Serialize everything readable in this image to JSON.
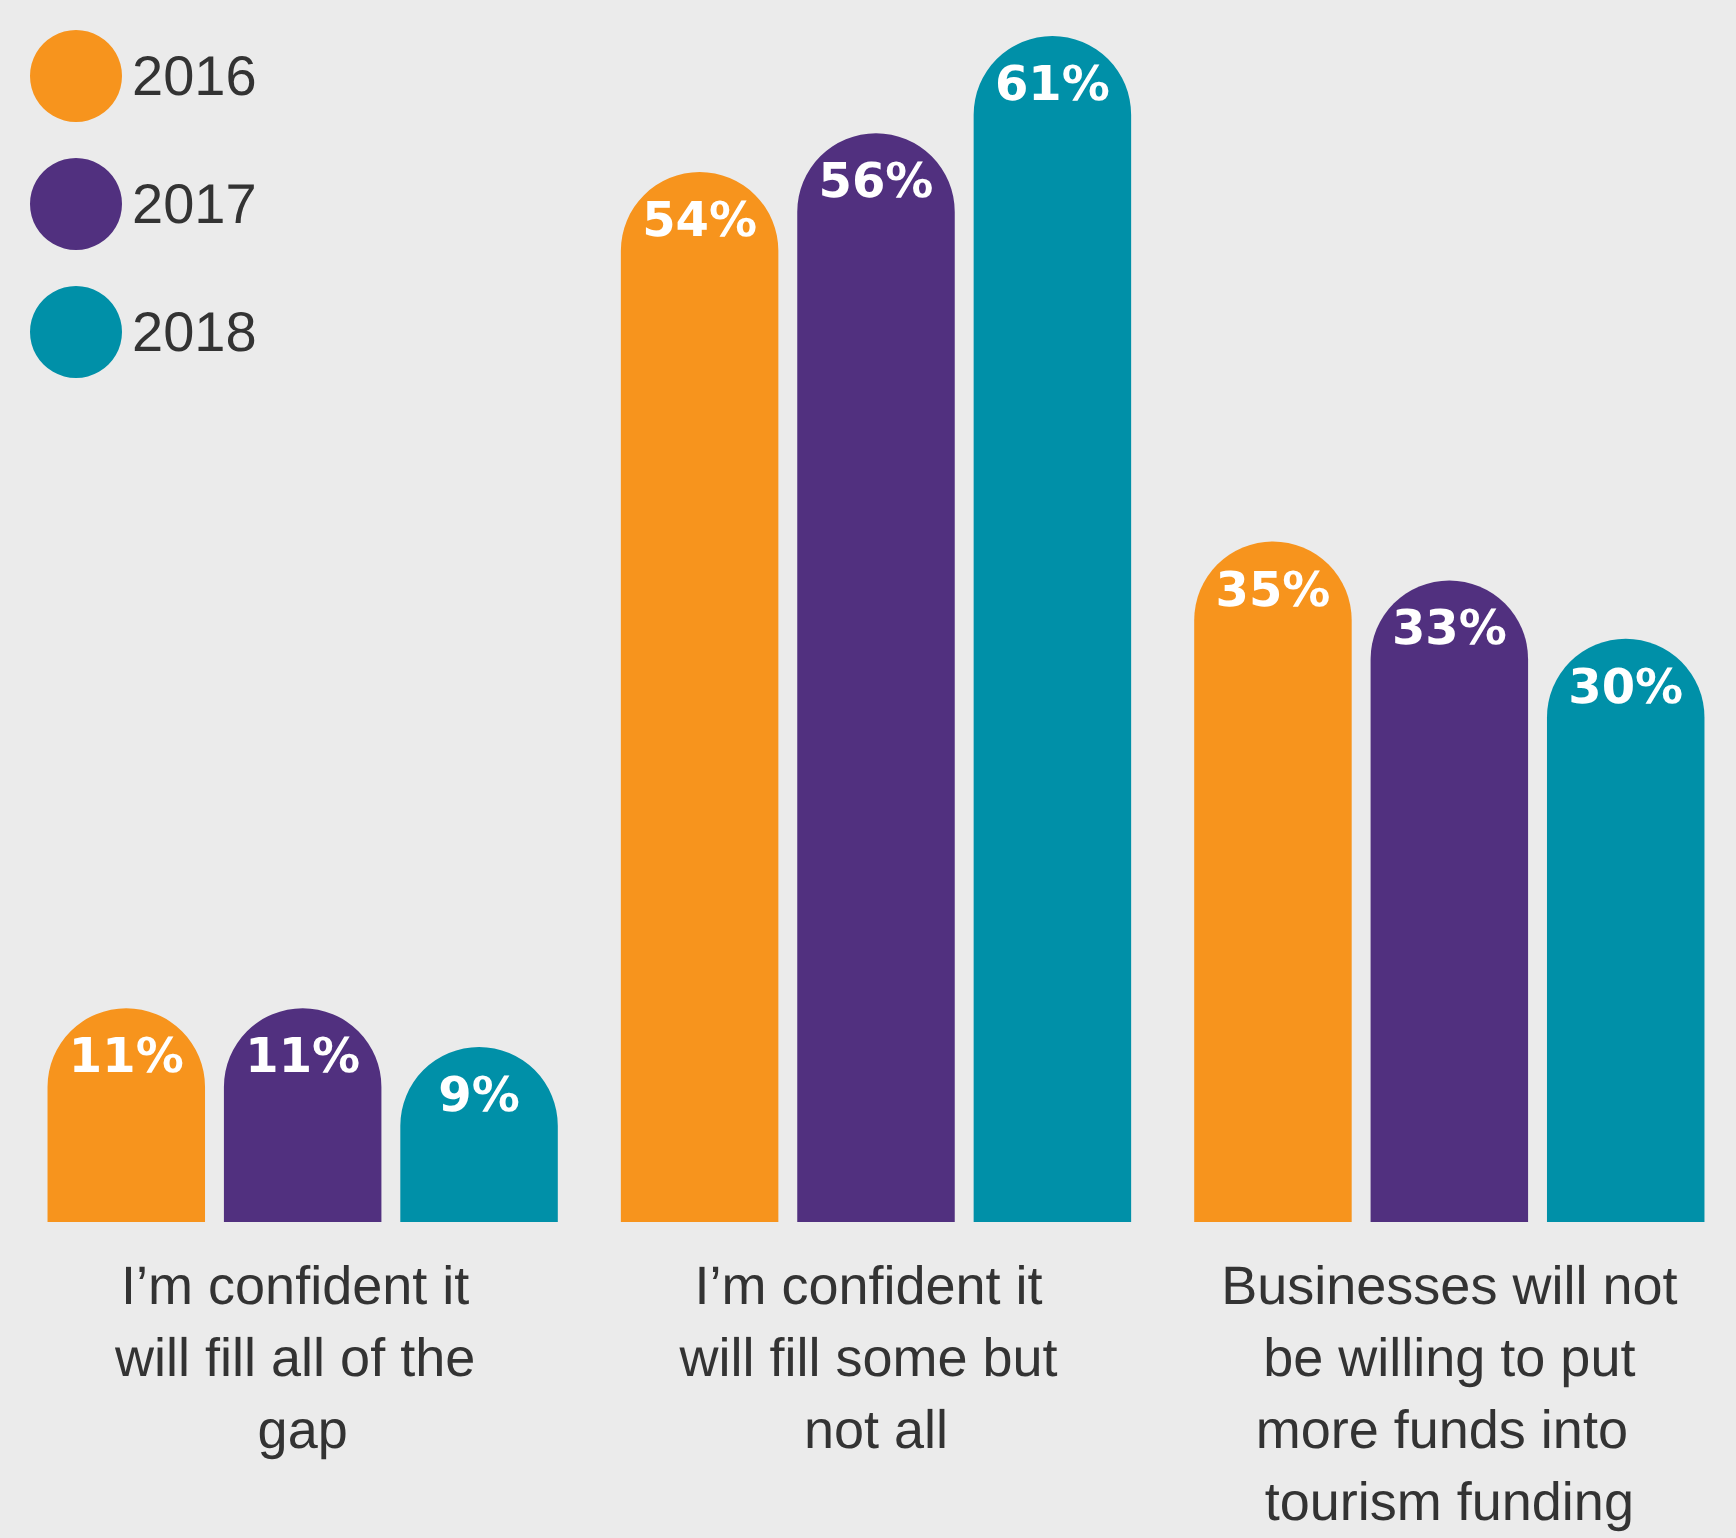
{
  "chart_data": {
    "type": "bar",
    "categories": [
      "I’m confident it will fill all of the gap",
      "I’m confident it will fill some but not all",
      "Businesses will not be willing to put more funds into tourism funding"
    ],
    "series": [
      {
        "name": "2016",
        "color": "#f7941d",
        "values": [
          11,
          54,
          35
        ],
        "value_labels": [
          "11%",
          "54%",
          "35%"
        ]
      },
      {
        "name": "2017",
        "color": "#51307f",
        "values": [
          11,
          56,
          33
        ],
        "value_labels": [
          "11%",
          "56%",
          "33%"
        ]
      },
      {
        "name": "2018",
        "color": "#0090a8",
        "values": [
          9,
          61,
          30
        ],
        "value_labels": [
          "9%",
          "61%",
          "30%"
        ]
      }
    ],
    "legend": "top left",
    "grid": false
  }
}
